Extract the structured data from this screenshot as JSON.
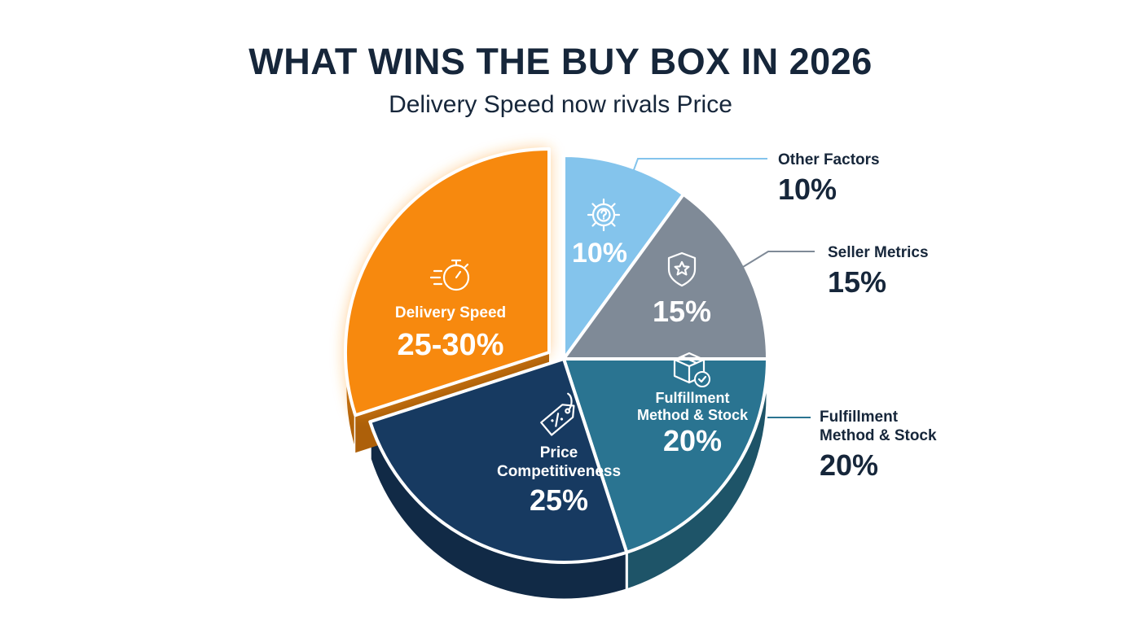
{
  "title": "WHAT WINS THE BUY BOX IN 2026",
  "subtitle": "Delivery Speed now rivals Price",
  "chart_data": {
    "type": "pie",
    "title": "WHAT WINS THE BUY BOX IN 2026",
    "subtitle": "Delivery Speed now rivals Price",
    "slices": [
      {
        "label": "Other Factors",
        "value": 10,
        "display": "10%",
        "color": "#84c4ec",
        "icon": "question-gear-icon"
      },
      {
        "label": "Seller Metrics",
        "value": 15,
        "display": "15%",
        "color": "#7f8a97",
        "icon": "shield-star-icon"
      },
      {
        "label": "Fulfillment Method & Stock",
        "value": 20,
        "display": "20%",
        "color": "#2a7491",
        "icon": "box-check-icon"
      },
      {
        "label": "Price Competitiveness",
        "value": 25,
        "display": "25%",
        "color": "#173a61",
        "icon": "price-tag-icon"
      },
      {
        "label": "Delivery Speed",
        "value": 30,
        "display": "25-30%",
        "color": "#f7890e",
        "icon": "stopwatch-icon",
        "exploded": true
      }
    ],
    "inner_labels": {
      "other": "10%",
      "seller": "15%",
      "fulfillment_line1": "Fulfillment",
      "fulfillment_line2": "Method & Stock",
      "fulfillment_value": "20%",
      "price_line1": "Price",
      "price_line2": "Competitiveness",
      "price_value": "25%",
      "delivery_line1": "Delivery Speed",
      "delivery_value": "25-30%"
    },
    "callouts": {
      "other_name": "Other Factors",
      "other_value": "10%",
      "seller_name": "Seller Metrics",
      "seller_value": "15%",
      "fulfillment_line1": "Fulfillment",
      "fulfillment_line2": "Method & Stock",
      "fulfillment_value": "20%"
    },
    "legend": "none"
  }
}
